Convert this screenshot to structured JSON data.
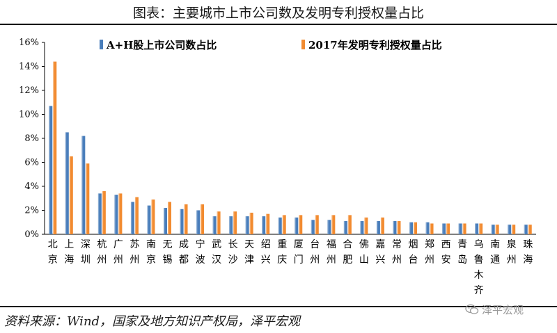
{
  "title": "图表：主要城市上市公司数及发明专利授权量占比",
  "source": "资料来源：Wind，国家及地方知识产权局，泽平宏观",
  "watermark": "泽平宏观",
  "colors": {
    "series1": "#4a7ebb",
    "series2": "#f28b30"
  },
  "chart_data": {
    "type": "bar",
    "categories": [
      "北京",
      "上海",
      "深圳",
      "杭州",
      "广州",
      "苏州",
      "南京",
      "无锡",
      "成都",
      "宁波",
      "武汉",
      "长沙",
      "天津",
      "绍兴",
      "重庆",
      "厦门",
      "台州",
      "福州",
      "合肥",
      "佛山",
      "嘉兴",
      "常州",
      "烟台",
      "郑州",
      "西安",
      "青岛",
      "乌鲁木齐",
      "南通",
      "泉州",
      "珠海"
    ],
    "series": [
      {
        "name": "A+H股上市公司数占比",
        "values": [
          10.7,
          8.5,
          8.2,
          3.4,
          3.3,
          2.7,
          2.4,
          2.2,
          2.1,
          2.0,
          1.5,
          1.5,
          1.5,
          1.5,
          1.4,
          1.4,
          1.2,
          1.2,
          1.1,
          1.1,
          1.1,
          1.1,
          1.0,
          1.0,
          0.9,
          0.9,
          0.9,
          0.8,
          0.8,
          0.8
        ]
      },
      {
        "name": "2017年发明专利授权量占比",
        "values": [
          14.4,
          6.5,
          5.9,
          3.6,
          3.4,
          3.1,
          2.9,
          2.7,
          2.5,
          2.5,
          1.9,
          1.9,
          1.8,
          1.7,
          1.6,
          1.6,
          1.6,
          1.6,
          1.6,
          1.4,
          1.4,
          1.1,
          1.0,
          0.9,
          0.9,
          0.9,
          0.9,
          0.8,
          0.8,
          0.8
        ]
      }
    ],
    "ylim": [
      0,
      16
    ],
    "yticks": [
      0,
      2,
      4,
      6,
      8,
      10,
      12,
      14,
      16
    ],
    "ytick_labels": [
      "0%",
      "2%",
      "4%",
      "6%",
      "8%",
      "10%",
      "12%",
      "14%",
      "16%"
    ],
    "grid": false,
    "legend_position": "top"
  }
}
